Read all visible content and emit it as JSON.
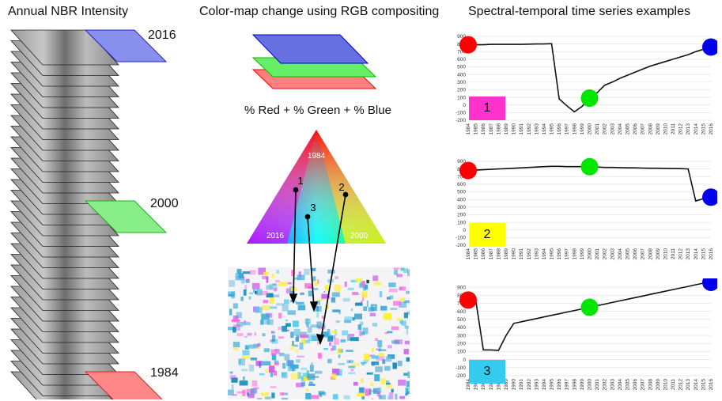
{
  "headers": {
    "left": "Annual NBR Intensity",
    "middle": "Color-map change using RGB compositing",
    "right": "Spectral-temporal time series examples"
  },
  "stack_years": {
    "top": "2016",
    "mid": "2000",
    "bottom": "1984"
  },
  "formula": "% Red + % Green + % Blue",
  "triangle": {
    "top": "1984",
    "left": "2016",
    "right": "2000",
    "points": [
      "1",
      "2",
      "3"
    ]
  },
  "colors": {
    "red": "#ff0000",
    "green": "#00e600",
    "blue": "#0000ee",
    "magenta": "#ff33cc",
    "yellow": "#ffff00",
    "cyan": "#33ccee"
  },
  "chart_data": [
    {
      "type": "line",
      "label": "1",
      "label_color": "#ff33cc",
      "x": [
        1984,
        1985,
        1986,
        1987,
        1988,
        1989,
        1990,
        1991,
        1992,
        1993,
        1994,
        1995,
        1996,
        1997,
        1998,
        1999,
        2000,
        2001,
        2002,
        2003,
        2004,
        2005,
        2006,
        2007,
        2008,
        2009,
        2010,
        2011,
        2012,
        2013,
        2014,
        2015,
        2016
      ],
      "values": [
        790,
        790,
        790,
        795,
        795,
        795,
        795,
        795,
        798,
        800,
        800,
        805,
        80,
        -10,
        -90,
        -20,
        90,
        160,
        260,
        300,
        350,
        390,
        430,
        470,
        510,
        540,
        570,
        600,
        630,
        660,
        700,
        730,
        760
      ],
      "yticks": [
        900,
        800,
        700,
        600,
        500,
        400,
        300,
        200,
        100,
        0,
        -100,
        -200
      ],
      "ylim": [
        -200,
        900
      ],
      "markers": [
        {
          "year": 1984,
          "color": "#ff0000"
        },
        {
          "year": 2000,
          "color": "#00e600"
        },
        {
          "year": 2016,
          "color": "#0000ee"
        }
      ]
    },
    {
      "type": "line",
      "label": "2",
      "label_color": "#ffff00",
      "x": [
        1984,
        1985,
        1986,
        1987,
        1988,
        1989,
        1990,
        1991,
        1992,
        1993,
        1994,
        1995,
        1996,
        1997,
        1998,
        1999,
        2000,
        2001,
        2002,
        2003,
        2004,
        2005,
        2006,
        2007,
        2008,
        2009,
        2010,
        2011,
        2012,
        2013,
        2014,
        2015,
        2016
      ],
      "values": [
        780,
        785,
        790,
        795,
        800,
        805,
        810,
        815,
        820,
        825,
        830,
        835,
        835,
        830,
        830,
        830,
        830,
        825,
        820,
        820,
        818,
        815,
        815,
        812,
        810,
        810,
        808,
        806,
        805,
        800,
        380,
        410,
        430
      ],
      "yticks": [
        900,
        800,
        700,
        600,
        500,
        400,
        300,
        200,
        100,
        0,
        -100,
        -200
      ],
      "ylim": [
        -200,
        900
      ],
      "markers": [
        {
          "year": 1984,
          "color": "#ff0000"
        },
        {
          "year": 2000,
          "color": "#00e600"
        },
        {
          "year": 2016,
          "color": "#0000ee"
        }
      ]
    },
    {
      "type": "line",
      "label": "3",
      "label_color": "#33ccee",
      "x": [
        1984,
        1985,
        1986,
        1987,
        1988,
        1989,
        1990,
        1991,
        1992,
        1993,
        1994,
        1995,
        1996,
        1997,
        1998,
        1999,
        2000,
        2001,
        2002,
        2003,
        2004,
        2005,
        2006,
        2007,
        2008,
        2009,
        2010,
        2011,
        2012,
        2013,
        2014,
        2015,
        2016
      ],
      "values": [
        740,
        740,
        120,
        120,
        115,
        300,
        450,
        470,
        490,
        510,
        530,
        550,
        570,
        590,
        610,
        630,
        650,
        670,
        690,
        710,
        730,
        750,
        770,
        790,
        810,
        830,
        850,
        870,
        890,
        910,
        930,
        950,
        960
      ],
      "yticks": [
        900,
        800,
        700,
        600,
        500,
        400,
        300,
        200,
        100,
        0,
        -100,
        -200
      ],
      "ylim": [
        -200,
        950
      ],
      "markers": [
        {
          "year": 1984,
          "color": "#ff0000"
        },
        {
          "year": 2000,
          "color": "#00e600"
        },
        {
          "year": 2016,
          "color": "#0000ee"
        }
      ]
    }
  ]
}
